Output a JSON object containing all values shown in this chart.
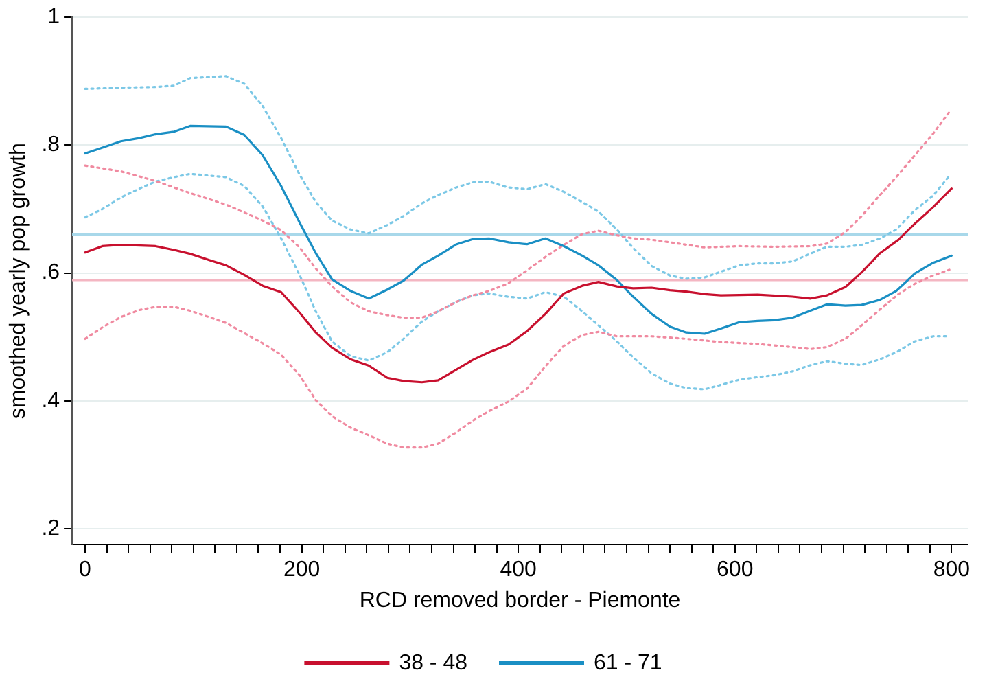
{
  "chart_data": {
    "type": "line",
    "xlabel": "RCD removed border - Piemonte",
    "ylabel": "smoothed yearly pop growth",
    "xlim": [
      -12,
      815
    ],
    "ylim": [
      0.175,
      1
    ],
    "xticks": [
      0,
      {
        "value": 20,
        "label": null
      },
      {
        "value": 40,
        "label": null
      },
      {
        "value": 60,
        "label": null
      },
      {
        "value": 80,
        "label": null
      },
      {
        "value": 100,
        "label": null
      },
      {
        "value": 120,
        "label": null
      },
      {
        "value": 140,
        "label": null
      },
      {
        "value": 160,
        "label": null
      },
      {
        "value": 180,
        "label": null
      },
      200,
      {
        "value": 220,
        "label": null
      },
      {
        "value": 240,
        "label": null
      },
      {
        "value": 260,
        "label": null
      },
      {
        "value": 280,
        "label": null
      },
      {
        "value": 300,
        "label": null
      },
      {
        "value": 320,
        "label": null
      },
      {
        "value": 340,
        "label": null
      },
      {
        "value": 360,
        "label": null
      },
      {
        "value": 380,
        "label": null
      },
      400,
      {
        "value": 420,
        "label": null
      },
      {
        "value": 440,
        "label": null
      },
      {
        "value": 460,
        "label": null
      },
      {
        "value": 480,
        "label": null
      },
      {
        "value": 500,
        "label": null
      },
      {
        "value": 520,
        "label": null
      },
      {
        "value": 540,
        "label": null
      },
      {
        "value": 560,
        "label": null
      },
      {
        "value": 580,
        "label": null
      },
      600,
      {
        "value": 620,
        "label": null
      },
      {
        "value": 640,
        "label": null
      },
      {
        "value": 660,
        "label": null
      },
      {
        "value": 680,
        "label": null
      },
      {
        "value": 700,
        "label": null
      },
      {
        "value": 720,
        "label": null
      },
      {
        "value": 740,
        "label": null
      },
      {
        "value": 760,
        "label": null
      },
      {
        "value": 780,
        "label": null
      },
      800
    ],
    "yticks": [
      {
        "value": 0.2,
        "label": ".2"
      },
      {
        "value": 0.4,
        "label": ".4"
      },
      {
        "value": 0.6,
        "label": ".6"
      },
      {
        "value": 0.8,
        "label": ".8"
      },
      1
    ],
    "grid": "y",
    "legend": "bottom",
    "marker": "none",
    "line_style": "solid",
    "ref_lines": [
      {
        "axis": "y",
        "value": 0.66,
        "label": null,
        "color": "#a8d8ea"
      },
      {
        "axis": "y",
        "value": 0.589,
        "label": null,
        "color": "#f4b6c2"
      }
    ],
    "series": [
      {
        "name": "38 - 48",
        "color": "#c8102e",
        "x": [
          0,
          16,
          33,
          65,
          82,
          97,
          115,
          130,
          147,
          164,
          181,
          198,
          213,
          228,
          245,
          262,
          279,
          294,
          311,
          326,
          343,
          358,
          373,
          391,
          408,
          425,
          442,
          459,
          474,
          491,
          506,
          523,
          540,
          555,
          572,
          587,
          621,
          653,
          670,
          685,
          702,
          717,
          734,
          751,
          766,
          783,
          800
        ],
        "values": [
          0.632,
          0.642,
          0.644,
          0.642,
          0.636,
          0.63,
          0.62,
          0.612,
          0.597,
          0.58,
          0.57,
          0.538,
          0.507,
          0.483,
          0.465,
          0.455,
          0.436,
          0.431,
          0.429,
          0.432,
          0.449,
          0.464,
          0.476,
          0.488,
          0.509,
          0.536,
          0.568,
          0.58,
          0.586,
          0.579,
          0.576,
          0.577,
          0.573,
          0.571,
          0.567,
          0.565,
          0.566,
          0.563,
          0.56,
          0.565,
          0.578,
          0.601,
          0.631,
          0.652,
          0.677,
          0.703,
          0.732
        ]
      },
      {
        "name": "61 - 71",
        "color": "#1a8fc4",
        "x": [
          0,
          16,
          33,
          50,
          65,
          82,
          97,
          130,
          147,
          164,
          181,
          198,
          213,
          228,
          245,
          262,
          279,
          294,
          311,
          326,
          343,
          358,
          373,
          391,
          408,
          425,
          442,
          459,
          474,
          491,
          506,
          523,
          540,
          555,
          572,
          587,
          604,
          621,
          636,
          653,
          668,
          685,
          702,
          717,
          734,
          749,
          766,
          783,
          800
        ],
        "values": [
          0.787,
          0.796,
          0.806,
          0.811,
          0.817,
          0.821,
          0.83,
          0.829,
          0.816,
          0.784,
          0.736,
          0.679,
          0.631,
          0.59,
          0.572,
          0.56,
          0.574,
          0.588,
          0.613,
          0.627,
          0.645,
          0.653,
          0.654,
          0.648,
          0.645,
          0.654,
          0.642,
          0.627,
          0.612,
          0.589,
          0.563,
          0.536,
          0.516,
          0.507,
          0.505,
          0.513,
          0.523,
          0.525,
          0.526,
          0.53,
          0.54,
          0.551,
          0.549,
          0.55,
          0.558,
          0.572,
          0.599,
          0.616,
          0.627
        ]
      },
      {
        "color": "#f08aa0",
        "line_style": "dotted",
        "x": [
          0,
          33,
          65,
          97,
          130,
          164,
          181,
          198,
          213,
          228,
          245,
          262,
          279,
          294,
          311,
          326,
          343,
          358,
          373,
          390,
          408,
          425,
          442,
          459,
          474,
          491,
          506,
          523,
          540,
          572,
          604,
          636,
          670,
          685,
          702,
          717,
          734,
          751,
          766,
          783,
          798
        ],
        "values": [
          0.768,
          0.759,
          0.744,
          0.725,
          0.707,
          0.682,
          0.667,
          0.64,
          0.607,
          0.579,
          0.554,
          0.54,
          0.534,
          0.53,
          0.53,
          0.54,
          0.555,
          0.565,
          0.572,
          0.583,
          0.604,
          0.625,
          0.644,
          0.661,
          0.666,
          0.659,
          0.654,
          0.652,
          0.648,
          0.64,
          0.642,
          0.641,
          0.642,
          0.646,
          0.664,
          0.689,
          0.722,
          0.754,
          0.784,
          0.818,
          0.852
        ]
      },
      {
        "color": "#f08aa0",
        "line_style": "dotted",
        "x": [
          0,
          16,
          33,
          50,
          65,
          82,
          97,
          130,
          164,
          181,
          198,
          213,
          228,
          245,
          262,
          279,
          294,
          311,
          326,
          343,
          358,
          373,
          391,
          408,
          425,
          442,
          459,
          474,
          491,
          523,
          555,
          587,
          621,
          653,
          670,
          685,
          702,
          717,
          734,
          751,
          766,
          783,
          798
        ],
        "values": [
          0.497,
          0.515,
          0.531,
          0.542,
          0.547,
          0.547,
          0.541,
          0.522,
          0.49,
          0.472,
          0.44,
          0.401,
          0.376,
          0.358,
          0.346,
          0.333,
          0.327,
          0.327,
          0.333,
          0.351,
          0.369,
          0.384,
          0.399,
          0.419,
          0.454,
          0.486,
          0.503,
          0.508,
          0.501,
          0.501,
          0.497,
          0.492,
          0.489,
          0.484,
          0.481,
          0.484,
          0.497,
          0.518,
          0.543,
          0.567,
          0.583,
          0.596,
          0.605
        ]
      },
      {
        "color": "#7cc8e6",
        "line_style": "dotted",
        "x": [
          0,
          33,
          65,
          82,
          97,
          130,
          147,
          164,
          181,
          198,
          213,
          228,
          245,
          262,
          279,
          294,
          311,
          326,
          343,
          358,
          373,
          390,
          408,
          425,
          442,
          459,
          474,
          491,
          506,
          523,
          540,
          555,
          572,
          587,
          604,
          621,
          636,
          653,
          668,
          685,
          702,
          717,
          734,
          749,
          766,
          783,
          798
        ],
        "values": [
          0.888,
          0.89,
          0.891,
          0.893,
          0.905,
          0.908,
          0.896,
          0.861,
          0.811,
          0.754,
          0.711,
          0.682,
          0.668,
          0.662,
          0.675,
          0.689,
          0.709,
          0.722,
          0.734,
          0.742,
          0.743,
          0.734,
          0.731,
          0.739,
          0.727,
          0.711,
          0.696,
          0.668,
          0.639,
          0.611,
          0.596,
          0.591,
          0.593,
          0.602,
          0.612,
          0.615,
          0.615,
          0.618,
          0.629,
          0.641,
          0.641,
          0.644,
          0.654,
          0.668,
          0.698,
          0.721,
          0.752
        ]
      },
      {
        "color": "#7cc8e6",
        "line_style": "dotted",
        "x": [
          0,
          16,
          33,
          50,
          65,
          82,
          97,
          130,
          147,
          164,
          181,
          198,
          213,
          228,
          245,
          262,
          279,
          294,
          311,
          326,
          343,
          358,
          373,
          390,
          408,
          425,
          442,
          459,
          474,
          491,
          506,
          523,
          540,
          555,
          572,
          587,
          604,
          621,
          636,
          653,
          668,
          685,
          702,
          717,
          734,
          749,
          766,
          783,
          798
        ],
        "values": [
          0.687,
          0.7,
          0.718,
          0.732,
          0.743,
          0.75,
          0.755,
          0.75,
          0.736,
          0.704,
          0.654,
          0.597,
          0.54,
          0.493,
          0.47,
          0.463,
          0.476,
          0.497,
          0.524,
          0.54,
          0.555,
          0.565,
          0.568,
          0.563,
          0.56,
          0.57,
          0.563,
          0.54,
          0.518,
          0.493,
          0.468,
          0.443,
          0.427,
          0.42,
          0.418,
          0.425,
          0.433,
          0.437,
          0.44,
          0.446,
          0.455,
          0.462,
          0.458,
          0.456,
          0.465,
          0.476,
          0.493,
          0.501,
          0.501
        ]
      }
    ]
  }
}
